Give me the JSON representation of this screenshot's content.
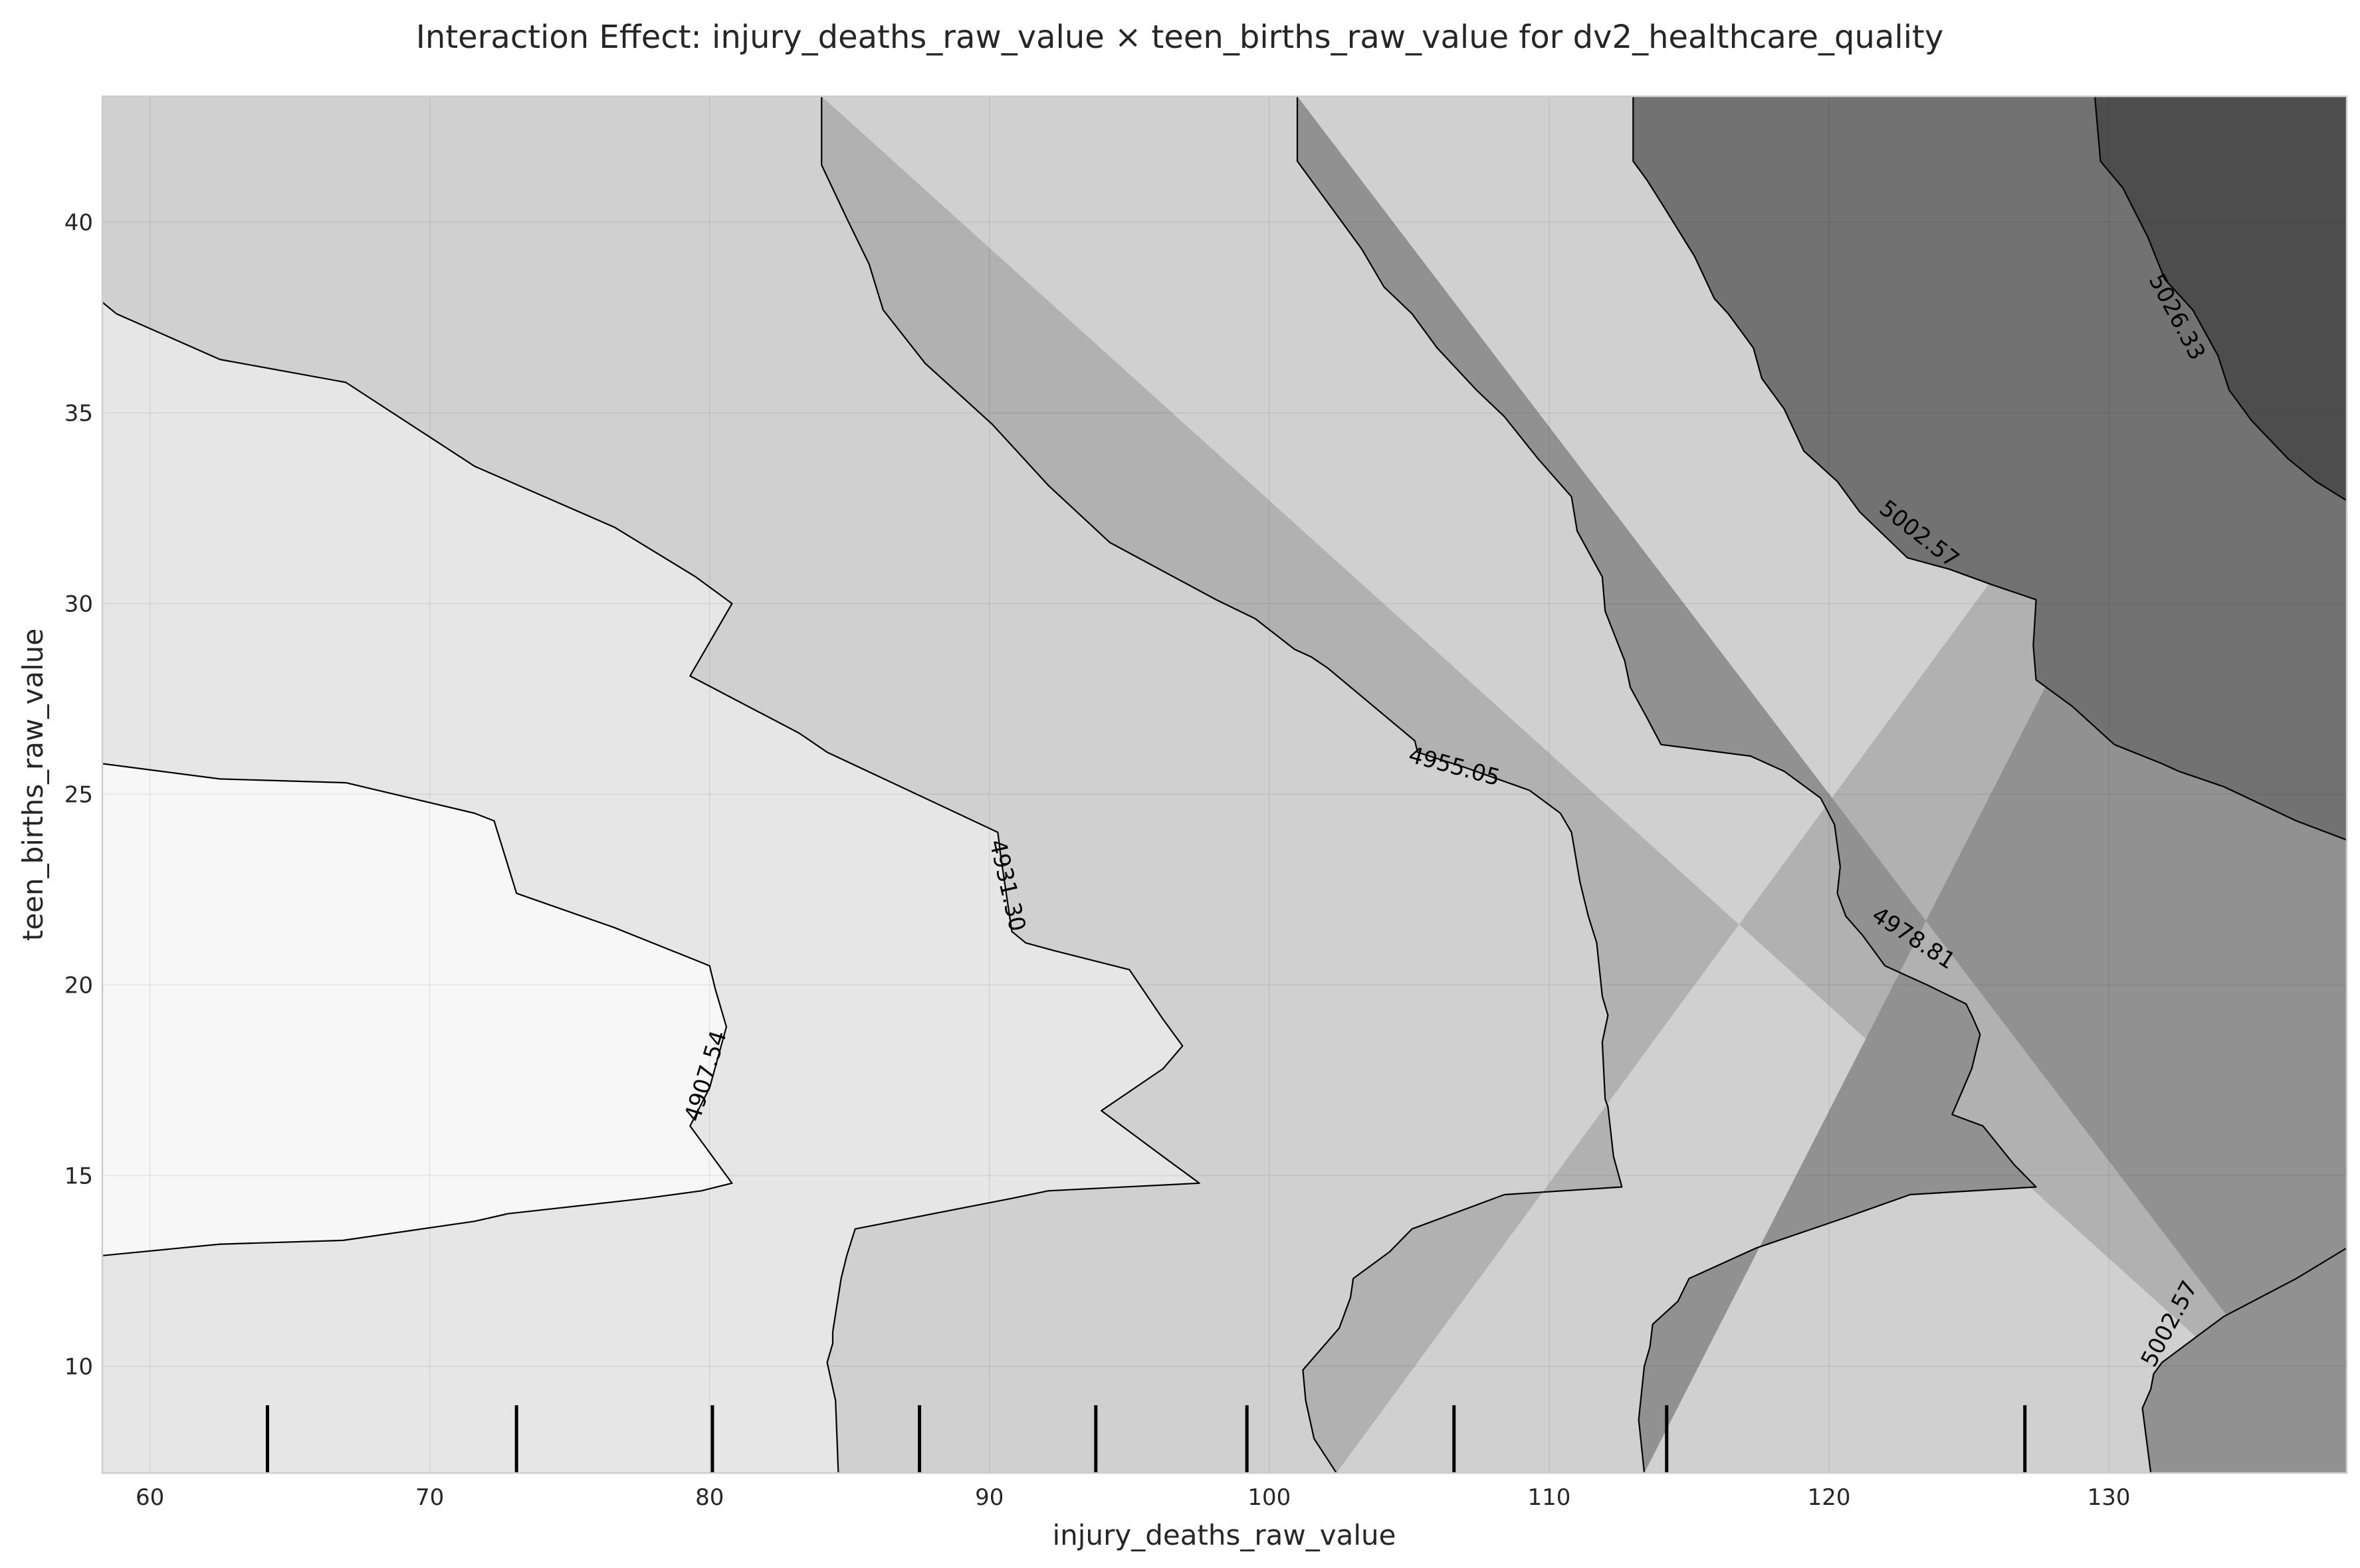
{
  "chart_data": {
    "type": "contour",
    "title": "Interaction Effect: injury_deaths_raw_value × teen_births_raw_value for dv2_healthcare_quality",
    "xlabel": "injury_deaths_raw_value",
    "ylabel": "teen_births_raw_value",
    "xlim": [
      58.3,
      138.5
    ],
    "ylim": [
      7.2,
      43.3
    ],
    "xticks": [
      60,
      70,
      80,
      90,
      100,
      110,
      120,
      130
    ],
    "yticks": [
      10,
      15,
      20,
      25,
      30,
      35,
      40
    ],
    "grid": true,
    "levels": [
      "4907.54",
      "4931.30",
      "4955.05",
      "4978.81",
      "5002.57",
      "5026.33"
    ],
    "level_values": [
      4907.54,
      4931.3,
      4955.05,
      4978.81,
      5002.57,
      5026.33
    ],
    "fill_colors": [
      "#f7f7f7",
      "#e6e6e6",
      "#d0d0d0",
      "#b1b1b1",
      "#919191",
      "#727272",
      "#4d4d4d"
    ],
    "contours": [
      {
        "level": 4907.54,
        "points": [
          [
            58.3,
            25.8
          ],
          [
            62.5,
            25.4
          ],
          [
            67,
            25.3
          ],
          [
            71.6,
            24.5
          ],
          [
            72.3,
            24.3
          ],
          [
            73.1,
            22.4
          ],
          [
            76.6,
            21.5
          ],
          [
            80,
            20.5
          ],
          [
            80.2,
            19.9
          ],
          [
            80.6,
            18.9
          ],
          [
            80.0,
            17.3
          ],
          [
            79.3,
            16.3
          ],
          [
            79.6,
            16.0
          ],
          [
            80.8,
            14.8
          ],
          [
            79.7,
            14.6
          ],
          [
            77.7,
            14.4
          ],
          [
            72.8,
            14.0
          ],
          [
            71.6,
            13.8
          ],
          [
            66.9,
            13.3
          ],
          [
            62.5,
            13.2
          ],
          [
            58.3,
            12.9
          ]
        ]
      },
      {
        "level": 4931.3,
        "points": [
          [
            58.3,
            37.9
          ],
          [
            58.8,
            37.6
          ],
          [
            62.5,
            36.4
          ],
          [
            67,
            35.8
          ],
          [
            71.6,
            33.6
          ],
          [
            76.6,
            32.0
          ],
          [
            79.5,
            30.7
          ],
          [
            80.8,
            30.0
          ],
          [
            79.3,
            28.1
          ],
          [
            83.2,
            26.6
          ],
          [
            84.2,
            26.1
          ],
          [
            90.3,
            24.0
          ],
          [
            90.4,
            23.4
          ],
          [
            90.8,
            21.4
          ],
          [
            91.3,
            21.1
          ],
          [
            92.3,
            20.9
          ],
          [
            95.0,
            20.4
          ],
          [
            96.2,
            19.1
          ],
          [
            96.9,
            18.4
          ],
          [
            96.2,
            17.8
          ],
          [
            94.0,
            16.7
          ],
          [
            96.2,
            15.5
          ],
          [
            97.5,
            14.8
          ],
          [
            92.1,
            14.6
          ],
          [
            90.8,
            14.4
          ],
          [
            85.2,
            13.6
          ],
          [
            84.9,
            12.9
          ],
          [
            84.7,
            12.3
          ],
          [
            84.4,
            10.9
          ],
          [
            84.4,
            10.6
          ],
          [
            84.2,
            10.1
          ],
          [
            84.5,
            9.1
          ],
          [
            84.6,
            7.2
          ]
        ]
      },
      {
        "level": 4955.05,
        "points": [
          [
            84.0,
            43.3
          ],
          [
            84.0,
            41.5
          ],
          [
            84.9,
            40.1
          ],
          [
            85.7,
            38.9
          ],
          [
            86.2,
            37.7
          ],
          [
            87.7,
            36.3
          ],
          [
            90.1,
            34.7
          ],
          [
            92.1,
            33.1
          ],
          [
            94.3,
            31.6
          ],
          [
            98.1,
            30.1
          ],
          [
            99.5,
            29.6
          ],
          [
            100.9,
            28.8
          ],
          [
            101.5,
            28.6
          ],
          [
            102.1,
            28.3
          ],
          [
            105.2,
            26.4
          ],
          [
            105.3,
            26.1
          ],
          [
            107.0,
            25.7
          ],
          [
            109.3,
            25.1
          ],
          [
            110.4,
            24.5
          ],
          [
            110.8,
            24.0
          ],
          [
            111.1,
            22.7
          ],
          [
            111.4,
            21.8
          ],
          [
            111.7,
            21.1
          ],
          [
            111.9,
            19.7
          ],
          [
            112.1,
            19.2
          ],
          [
            111.9,
            18.5
          ],
          [
            112.0,
            17.0
          ],
          [
            112.1,
            16.8
          ],
          [
            112.3,
            15.5
          ],
          [
            112.6,
            14.7
          ],
          [
            108.4,
            14.5
          ],
          [
            105.1,
            13.6
          ],
          [
            104.3,
            13.0
          ],
          [
            103.0,
            12.3
          ],
          [
            102.9,
            11.8
          ],
          [
            102.5,
            11.0
          ],
          [
            101.2,
            9.9
          ],
          [
            101.3,
            9.1
          ],
          [
            101.6,
            8.1
          ],
          [
            102.4,
            7.2
          ]
        ]
      },
      {
        "level": 4978.81,
        "points": [
          [
            101.0,
            43.3
          ],
          [
            101.0,
            41.6
          ],
          [
            102.2,
            40.4
          ],
          [
            103.3,
            39.3
          ],
          [
            104.1,
            38.3
          ],
          [
            105.1,
            37.6
          ],
          [
            106.0,
            36.7
          ],
          [
            107.4,
            35.6
          ],
          [
            108.4,
            34.9
          ],
          [
            109.6,
            33.8
          ],
          [
            110.8,
            32.8
          ],
          [
            111.0,
            31.9
          ],
          [
            111.9,
            30.7
          ],
          [
            112.0,
            29.8
          ],
          [
            112.7,
            28.5
          ],
          [
            112.9,
            27.8
          ],
          [
            113.5,
            27.0
          ],
          [
            114.0,
            26.3
          ],
          [
            117.2,
            26.0
          ],
          [
            118.4,
            25.6
          ],
          [
            119.7,
            24.9
          ],
          [
            120.2,
            24.2
          ],
          [
            120.4,
            23.1
          ],
          [
            120.3,
            22.4
          ],
          [
            120.6,
            21.8
          ],
          [
            121.2,
            21.3
          ],
          [
            122.0,
            20.5
          ],
          [
            123.5,
            20.0
          ],
          [
            124.9,
            19.5
          ],
          [
            125.1,
            19.2
          ],
          [
            125.4,
            18.7
          ],
          [
            125.1,
            17.8
          ],
          [
            124.4,
            16.6
          ],
          [
            125.5,
            16.3
          ],
          [
            126.6,
            15.3
          ],
          [
            127.4,
            14.7
          ],
          [
            122.9,
            14.5
          ],
          [
            120.6,
            13.9
          ],
          [
            117.4,
            13.1
          ],
          [
            115.0,
            12.3
          ],
          [
            114.6,
            11.7
          ],
          [
            113.7,
            11.1
          ],
          [
            113.6,
            10.5
          ],
          [
            113.4,
            10.0
          ],
          [
            113.2,
            8.6
          ],
          [
            113.4,
            7.2
          ]
        ]
      },
      {
        "level": 5002.57,
        "points": [
          [
            113.0,
            43.3
          ],
          [
            113.0,
            41.6
          ],
          [
            113.5,
            41.1
          ],
          [
            114.1,
            40.4
          ],
          [
            115.2,
            39.1
          ],
          [
            115.9,
            38.0
          ],
          [
            116.4,
            37.6
          ],
          [
            117.3,
            36.7
          ],
          [
            117.6,
            35.9
          ],
          [
            118.4,
            35.1
          ],
          [
            119.1,
            34.0
          ],
          [
            119.4,
            33.8
          ],
          [
            120.3,
            33.2
          ],
          [
            121.1,
            32.4
          ],
          [
            122.8,
            31.2
          ],
          [
            124.3,
            30.9
          ],
          [
            125.8,
            30.5
          ],
          [
            127.4,
            30.1
          ],
          [
            127.3,
            28.9
          ],
          [
            127.4,
            28.0
          ],
          [
            128.7,
            27.3
          ],
          [
            130.2,
            26.3
          ],
          [
            131.9,
            25.8
          ],
          [
            132.5,
            25.6
          ],
          [
            134.1,
            25.2
          ],
          [
            136.7,
            24.3
          ],
          [
            138.5,
            23.8
          ]
        ]
      },
      {
        "level": 5002.57,
        "points": [
          [
            138.5,
            13.1
          ],
          [
            136.7,
            12.3
          ],
          [
            134.1,
            11.3
          ],
          [
            133.0,
            10.7
          ],
          [
            131.9,
            10.1
          ],
          [
            131.6,
            9.8
          ],
          [
            131.5,
            9.4
          ],
          [
            131.2,
            8.9
          ],
          [
            131.5,
            7.2
          ]
        ]
      },
      {
        "level": 5026.33,
        "points": [
          [
            129.5,
            43.3
          ],
          [
            129.7,
            41.6
          ],
          [
            130.5,
            40.9
          ],
          [
            131.4,
            39.6
          ],
          [
            132.0,
            38.5
          ],
          [
            133.0,
            37.7
          ],
          [
            133.9,
            36.5
          ],
          [
            134.3,
            35.6
          ],
          [
            135.1,
            34.8
          ],
          [
            136.4,
            33.8
          ],
          [
            137.4,
            33.2
          ],
          [
            138.5,
            32.7
          ]
        ]
      }
    ],
    "contour_labels": [
      {
        "text": "4907.54",
        "x": 79.9,
        "y": 17.6,
        "angle": -73
      },
      {
        "text": "4931.30",
        "x": 90.6,
        "y": 22.6,
        "angle": 77
      },
      {
        "text": "4955.05",
        "x": 106.6,
        "y": 25.7,
        "angle": 15
      },
      {
        "text": "4978.81",
        "x": 123.0,
        "y": 21.2,
        "angle": 33
      },
      {
        "text": "5002.57",
        "x": 123.2,
        "y": 31.8,
        "angle": 38
      },
      {
        "text": "5026.33",
        "x": 132.4,
        "y": 37.5,
        "angle": 62
      },
      {
        "text": "5002.57",
        "x": 132.2,
        "y": 11.1,
        "angle": -62
      }
    ],
    "rug_x": [
      64.2,
      73.1,
      80.1,
      87.5,
      93.8,
      99.2,
      106.6,
      114.2,
      127.0
    ]
  }
}
